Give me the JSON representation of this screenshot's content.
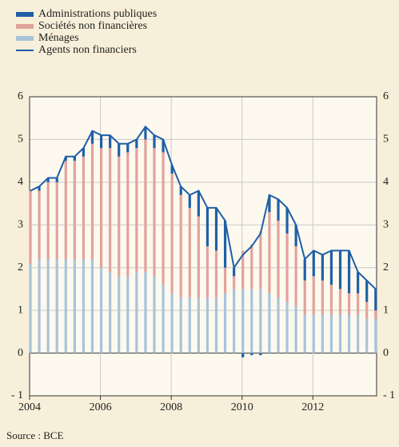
{
  "chart_data": {
    "type": "stacked_bar_line",
    "x": [
      2004,
      2004.25,
      2004.5,
      2004.75,
      2005,
      2005.25,
      2005.5,
      2005.75,
      2006,
      2006.25,
      2006.5,
      2006.75,
      2007,
      2007.25,
      2007.5,
      2007.75,
      2008,
      2008.25,
      2008.5,
      2008.75,
      2009,
      2009.25,
      2009.5,
      2009.75,
      2010,
      2010.25,
      2010.5,
      2010.75,
      2011,
      2011.25,
      2011.5,
      2011.75,
      2012,
      2012.25,
      2012.5,
      2012.75,
      2013,
      2013.25,
      2013.5,
      2013.75
    ],
    "series": [
      {
        "name": "Administrations publiques",
        "color": "#1f5fa8",
        "kind": "bar",
        "values": [
          0,
          0.1,
          0.1,
          0.1,
          0.1,
          0.1,
          0.2,
          0.3,
          0.3,
          0.3,
          0.3,
          0.2,
          0.2,
          0.3,
          0.3,
          0.3,
          0.2,
          0.2,
          0.3,
          0.6,
          0.9,
          1.0,
          1.1,
          0.2,
          -0.1,
          -0.05,
          -0.05,
          0.4,
          0.5,
          0.6,
          0.5,
          0.5,
          0.6,
          0.6,
          0.8,
          0.9,
          1.0,
          0.5,
          0.5,
          0.5
        ]
      },
      {
        "name": "Sociétés non financières",
        "color": "#e2a29c",
        "kind": "bar",
        "values": [
          1.7,
          1.6,
          1.8,
          1.8,
          2.3,
          2.3,
          2.4,
          2.7,
          2.8,
          2.9,
          2.8,
          2.9,
          2.9,
          3.1,
          3.0,
          3.1,
          2.8,
          2.4,
          2.1,
          1.9,
          1.2,
          1.1,
          0.6,
          0.3,
          0.9,
          1.05,
          1.35,
          1.9,
          1.8,
          1.6,
          1.4,
          0.8,
          0.9,
          0.8,
          0.7,
          0.6,
          0.5,
          0.5,
          0.4,
          0.2
        ]
      },
      {
        "name": "Ménages",
        "color": "#a9c3da",
        "kind": "bar",
        "values": [
          2.1,
          2.2,
          2.2,
          2.2,
          2.2,
          2.2,
          2.2,
          2.2,
          2.0,
          1.9,
          1.8,
          1.8,
          1.9,
          1.9,
          1.8,
          1.6,
          1.4,
          1.3,
          1.3,
          1.3,
          1.3,
          1.3,
          1.4,
          1.5,
          1.5,
          1.5,
          1.5,
          1.4,
          1.3,
          1.2,
          1.1,
          0.9,
          0.9,
          0.9,
          0.9,
          0.9,
          0.9,
          0.9,
          0.8,
          0.8
        ]
      },
      {
        "name": "Agents non financiers",
        "color": "#1f5fa8",
        "kind": "line",
        "values": [
          3.8,
          3.9,
          4.1,
          4.1,
          4.6,
          4.6,
          4.8,
          5.2,
          5.1,
          5.1,
          4.9,
          4.9,
          5.0,
          5.3,
          5.1,
          5.0,
          4.4,
          3.9,
          3.7,
          3.8,
          3.4,
          3.4,
          3.1,
          2.0,
          2.3,
          2.5,
          2.8,
          3.7,
          3.6,
          3.4,
          3.0,
          2.2,
          2.4,
          2.3,
          2.4,
          2.4,
          2.4,
          1.9,
          1.7,
          1.5
        ]
      }
    ],
    "xlim": [
      2004,
      2013.8
    ],
    "xticks": [
      2004,
      2006,
      2008,
      2010,
      2012
    ],
    "ylim": [
      -1,
      6
    ],
    "yticks": [
      {
        "value": -1,
        "label": "- 1"
      },
      0,
      1,
      2,
      3,
      4,
      5,
      6
    ],
    "grid": true,
    "source": "Source : BCE"
  }
}
